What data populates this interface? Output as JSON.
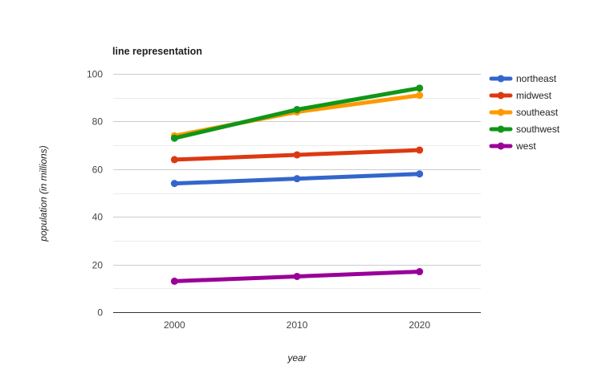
{
  "chart_data": {
    "type": "line",
    "title": "line representation",
    "xlabel": "year",
    "ylabel": "population (in millions)",
    "categories": [
      "2000",
      "2010",
      "2020"
    ],
    "ylim": [
      0,
      100
    ],
    "yticks": [
      0,
      20,
      40,
      60,
      80,
      100
    ],
    "grid": true,
    "legend_position": "right",
    "series": [
      {
        "name": "northeast",
        "color": "#3366cc",
        "values": [
          54,
          56,
          58
        ]
      },
      {
        "name": "midwest",
        "color": "#dc3912",
        "values": [
          64,
          66,
          68
        ]
      },
      {
        "name": "southeast",
        "color": "#ff9900",
        "values": [
          74,
          84,
          91
        ]
      },
      {
        "name": "southwest",
        "color": "#109618",
        "values": [
          73,
          85,
          94
        ]
      },
      {
        "name": "west",
        "color": "#990099",
        "values": [
          13,
          15,
          17
        ]
      }
    ]
  }
}
